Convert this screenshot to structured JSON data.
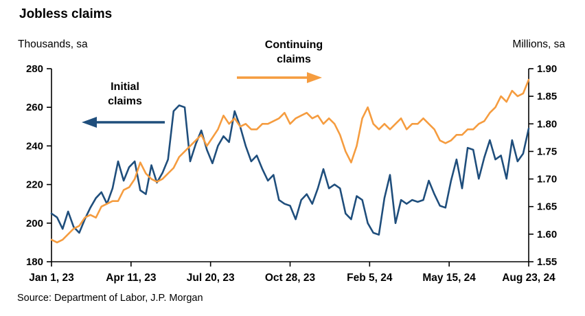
{
  "title": "Jobless claims",
  "left_axis_unit": "Thousands, sa",
  "right_axis_unit": "Millions, sa",
  "source": "Source: Department of Labor, J.P. Morgan",
  "annotations": {
    "initial": {
      "line1": "Initial",
      "line2": "claims"
    },
    "continuing": {
      "line1": "Continuing",
      "line2": "claims"
    }
  },
  "colors": {
    "initial": "#1F4E7C",
    "continuing": "#F59C3F",
    "axis": "#000000"
  },
  "chart_data": {
    "type": "line",
    "title": "Jobless claims",
    "x_tick_labels": [
      "Jan 1, 23",
      "Apr 11, 23",
      "Jul 20, 23",
      "Oct 28, 23",
      "Feb 5, 24",
      "May 15, 24",
      "Aug 23, 24"
    ],
    "left_axis": {
      "label": "Thousands, sa",
      "min": 180,
      "max": 280,
      "ticks": [
        180,
        200,
        220,
        240,
        260,
        280
      ]
    },
    "right_axis": {
      "label": "Millions, sa",
      "min": 1.55,
      "max": 1.9,
      "ticks": [
        1.55,
        1.6,
        1.65,
        1.7,
        1.75,
        1.8,
        1.85,
        1.9
      ]
    },
    "legend_position": "annotations-with-arrows",
    "grid": false,
    "series": [
      {
        "name": "Initial claims",
        "axis": "left",
        "unit": "thousands",
        "color": "#1F4E7C",
        "values": [
          205,
          203,
          197,
          206,
          198,
          195,
          202,
          208,
          213,
          216,
          210,
          218,
          232,
          222,
          229,
          232,
          217,
          215,
          230,
          221,
          226,
          233,
          258,
          261,
          260,
          232,
          241,
          248,
          238,
          231,
          240,
          245,
          242,
          258,
          250,
          240,
          232,
          235,
          228,
          222,
          225,
          212,
          210,
          209,
          202,
          212,
          215,
          210,
          218,
          228,
          218,
          220,
          218,
          205,
          202,
          214,
          212,
          200,
          195,
          194,
          213,
          225,
          200,
          212,
          210,
          212,
          211,
          212,
          222,
          215,
          209,
          208,
          222,
          233,
          218,
          239,
          238,
          223,
          234,
          243,
          233,
          235,
          223,
          243,
          232,
          236,
          249
        ]
      },
      {
        "name": "Continuing claims",
        "axis": "right",
        "unit": "millions",
        "color": "#F59C3F",
        "values": [
          1.59,
          1.585,
          1.59,
          1.6,
          1.61,
          1.615,
          1.63,
          1.635,
          1.63,
          1.65,
          1.655,
          1.66,
          1.66,
          1.68,
          1.685,
          1.7,
          1.73,
          1.71,
          1.7,
          1.695,
          1.7,
          1.71,
          1.72,
          1.74,
          1.75,
          1.76,
          1.77,
          1.78,
          1.76,
          1.775,
          1.79,
          1.815,
          1.8,
          1.81,
          1.795,
          1.8,
          1.79,
          1.79,
          1.8,
          1.8,
          1.805,
          1.81,
          1.82,
          1.8,
          1.81,
          1.815,
          1.82,
          1.81,
          1.815,
          1.8,
          1.81,
          1.8,
          1.78,
          1.75,
          1.73,
          1.76,
          1.81,
          1.83,
          1.8,
          1.79,
          1.8,
          1.79,
          1.8,
          1.81,
          1.79,
          1.8,
          1.8,
          1.81,
          1.8,
          1.79,
          1.77,
          1.765,
          1.77,
          1.78,
          1.78,
          1.79,
          1.79,
          1.8,
          1.805,
          1.82,
          1.83,
          1.85,
          1.84,
          1.86,
          1.85,
          1.855,
          1.88
        ]
      }
    ]
  }
}
